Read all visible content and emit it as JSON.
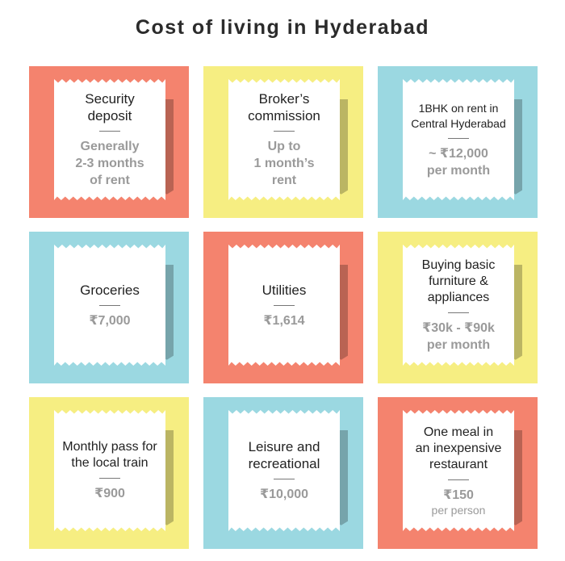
{
  "title": "Cost of living in Hyderabad",
  "colors": {
    "salmon": "#F4836E",
    "yellow": "#F6EE82",
    "blue": "#9BD8E1",
    "value_gray": "#9a9a9a",
    "text_dark": "#222222"
  },
  "cards": [
    {
      "label": [
        "Security",
        "deposit"
      ],
      "value": [
        "Generally",
        "2-3 months",
        "of rent"
      ],
      "color": "salmon"
    },
    {
      "label": [
        "Broker’s",
        "commission"
      ],
      "value": [
        "Up to",
        "1 month’s",
        "rent"
      ],
      "color": "yellow"
    },
    {
      "label": [
        "1BHK on rent in",
        "Central Hyderabad"
      ],
      "value": [
        "~ ₹12,000",
        "per month"
      ],
      "color": "blue"
    },
    {
      "label": [
        "Groceries"
      ],
      "value": [
        "₹7,000"
      ],
      "color": "blue"
    },
    {
      "label": [
        "Utilities"
      ],
      "value": [
        "₹1,614"
      ],
      "color": "salmon"
    },
    {
      "label": [
        "Buying basic",
        "furniture &",
        "appliances"
      ],
      "value": [
        "₹30k - ₹90k",
        "per month"
      ],
      "color": "yellow"
    },
    {
      "label": [
        "Monthly pass for",
        "the local train"
      ],
      "value": [
        "₹900"
      ],
      "color": "yellow"
    },
    {
      "label": [
        "Leisure and",
        "recreational"
      ],
      "value": [
        "₹10,000"
      ],
      "color": "blue"
    },
    {
      "label": [
        "One meal in",
        "an inexpensive",
        "restaurant"
      ],
      "value": [
        "₹150"
      ],
      "sub": "per person",
      "color": "salmon"
    }
  ]
}
